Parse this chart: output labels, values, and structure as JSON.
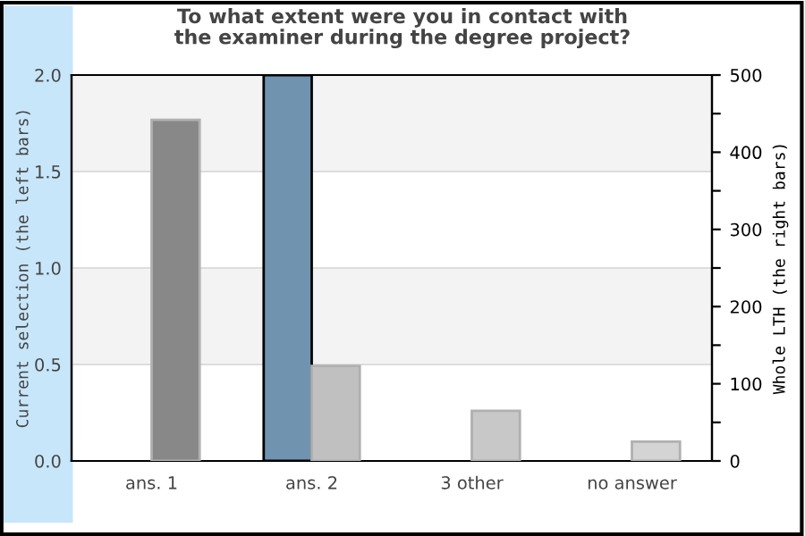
{
  "chart_data": {
    "type": "bar",
    "title": "To what extent were you in contact with\nthe examiner during the degree project?",
    "categories": [
      "ans. 1",
      "ans. 2",
      "3 other",
      "no answer"
    ],
    "ylabel": "Current selection (the left bars)",
    "y2label": "Whole LTH (the right bars)",
    "series": [
      {
        "colors": [
          "#7093b0",
          "#7093b0",
          "#7093b0",
          "#7093b0"
        ],
        "values": [
          0,
          2.0,
          0,
          0
        ],
        "axis": "y"
      },
      {
        "colors": [
          "#888888",
          "#c0c0c0",
          "#c8c8c8",
          "#d4d4d4"
        ],
        "values": [
          442,
          123,
          65,
          25
        ],
        "axis": "y2"
      }
    ],
    "ylim": [
      0,
      2.0
    ],
    "yticks": [
      {
        "value": 0,
        "label": "0.0"
      },
      0.5,
      {
        "value": 1,
        "label": "1.0"
      },
      1.5,
      {
        "value": 2,
        "label": "2.0"
      }
    ],
    "y2lim": [
      0,
      500
    ],
    "y2ticks": [
      0,
      {
        "value": 50,
        "label": null
      },
      100,
      {
        "value": 150,
        "label": null
      },
      200,
      {
        "value": 250,
        "label": null
      },
      300,
      {
        "value": 350,
        "label": null
      },
      400,
      {
        "value": 450,
        "label": null
      },
      500
    ],
    "grid": "y",
    "bands": [
      {
        "axis": "y",
        "from": 0.5,
        "to": 1.0,
        "color": "#f3f3f3"
      },
      {
        "axis": "y",
        "from": 1.5,
        "to": 2.0,
        "color": "#f3f3f3"
      }
    ]
  }
}
